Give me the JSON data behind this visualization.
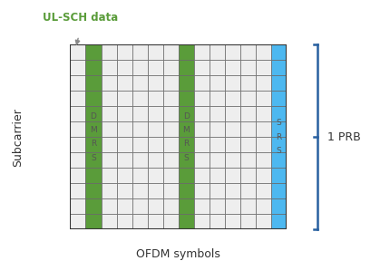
{
  "n_rows": 12,
  "n_cols": 14,
  "dmrs_cols": [
    1,
    7
  ],
  "srs_col": 13,
  "cell_default_color": "#eeeeee",
  "dmrs_color": "#5a9c3a",
  "srs_color": "#4db8f0",
  "dmrs_text": "D\nM\nR\nS",
  "srs_text": "S\nR\nS",
  "title_text": "UL-SCH data",
  "xlabel": "OFDM symbols",
  "ylabel": "Subcarrier",
  "prb_label": "1 PRB",
  "title_color": "#5a9c3a",
  "arrow_color": "#888888",
  "bracket_color": "#2860a0",
  "background_color": "#ffffff",
  "cell_edge_color": "#666666",
  "label_color": "#333333",
  "dmrs_text_color": "#555555",
  "srs_text_color": "#555555",
  "title_fontsize": 8.5,
  "axis_label_fontsize": 9,
  "cell_text_fontsize": 6.5
}
